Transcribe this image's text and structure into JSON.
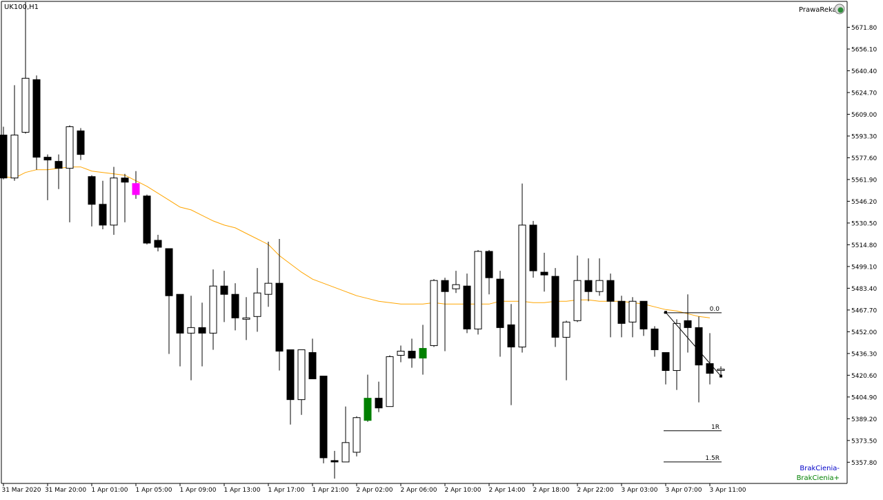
{
  "window": {
    "symbol_label": "UK100,H1",
    "brand_label": "PrawaReka"
  },
  "chart_data": {
    "type": "candlestick",
    "symbol": "UK100",
    "timeframe": "H1",
    "ylim": [
      5343.0,
      5690.0
    ],
    "y_ticks": [
      5357.8,
      5373.5,
      5389.2,
      5404.9,
      5420.6,
      5436.3,
      5452.0,
      5467.7,
      5483.4,
      5499.1,
      5514.8,
      5530.5,
      5546.2,
      5561.9,
      5577.6,
      5593.3,
      5609.0,
      5624.7,
      5640.4,
      5656.1,
      5671.8
    ],
    "y_tick_labels": [
      "5357.80",
      "5373.50",
      "5389.20",
      "5404.90",
      "5420.60",
      "5436.30",
      "5452.00",
      "5467.70",
      "5483.40",
      "5499.10",
      "5514.80",
      "5530.50",
      "5546.20",
      "5561.90",
      "5577.60",
      "5593.30",
      "5609.00",
      "5624.70",
      "5640.40",
      "5656.10",
      "5671.80"
    ],
    "x_tick_labels": [
      {
        "bar": 0,
        "label": "31 Mar 2020"
      },
      {
        "bar": 4,
        "label": "31 Mar 20:00"
      },
      {
        "bar": 8,
        "label": "1 Apr 01:00"
      },
      {
        "bar": 12,
        "label": "1 Apr 05:00"
      },
      {
        "bar": 16,
        "label": "1 Apr 09:00"
      },
      {
        "bar": 20,
        "label": "1 Apr 13:00"
      },
      {
        "bar": 24,
        "label": "1 Apr 17:00"
      },
      {
        "bar": 28,
        "label": "1 Apr 21:00"
      },
      {
        "bar": 32,
        "label": "2 Apr 02:00"
      },
      {
        "bar": 36,
        "label": "2 Apr 06:00"
      },
      {
        "bar": 40,
        "label": "2 Apr 10:00"
      },
      {
        "bar": 44,
        "label": "2 Apr 14:00"
      },
      {
        "bar": 48,
        "label": "2 Apr 18:00"
      },
      {
        "bar": 52,
        "label": "2 Apr 22:00"
      },
      {
        "bar": 56,
        "label": "3 Apr 03:00"
      },
      {
        "bar": 60,
        "label": "3 Apr 07:00"
      },
      {
        "bar": 64,
        "label": "3 Apr 11:00"
      }
    ],
    "candles": [
      {
        "o": 5594,
        "h": 5600,
        "l": 5562,
        "c": 5563
      },
      {
        "o": 5563,
        "h": 5630,
        "l": 5561,
        "c": 5594
      },
      {
        "o": 5596,
        "h": 5690,
        "l": 5595,
        "c": 5635
      },
      {
        "o": 5634,
        "h": 5637,
        "l": 5569,
        "c": 5578
      },
      {
        "o": 5578,
        "h": 5580,
        "l": 5547,
        "c": 5576
      },
      {
        "o": 5575,
        "h": 5580,
        "l": 5555,
        "c": 5570
      },
      {
        "o": 5570,
        "h": 5601,
        "l": 5531,
        "c": 5600
      },
      {
        "o": 5597,
        "h": 5599,
        "l": 5576,
        "c": 5580
      },
      {
        "o": 5564,
        "h": 5565,
        "l": 5528,
        "c": 5544
      },
      {
        "o": 5544,
        "h": 5561,
        "l": 5526,
        "c": 5529
      },
      {
        "o": 5529,
        "h": 5571,
        "l": 5522,
        "c": 5563
      },
      {
        "o": 5563,
        "h": 5566,
        "l": 5531,
        "c": 5560
      },
      {
        "o": 5559,
        "h": 5568,
        "l": 5548,
        "c": 5551
      },
      {
        "o": 5550,
        "h": 5551,
        "l": 5515,
        "c": 5516
      },
      {
        "o": 5518,
        "h": 5522,
        "l": 5510,
        "c": 5513
      },
      {
        "o": 5512,
        "h": 5512,
        "l": 5436,
        "c": 5478
      },
      {
        "o": 5479,
        "h": 5479,
        "l": 5427,
        "c": 5451
      },
      {
        "o": 5451,
        "h": 5478,
        "l": 5417,
        "c": 5455
      },
      {
        "o": 5455,
        "h": 5473,
        "l": 5427,
        "c": 5451
      },
      {
        "o": 5451,
        "h": 5497,
        "l": 5439,
        "c": 5485
      },
      {
        "o": 5485,
        "h": 5496,
        "l": 5459,
        "c": 5479
      },
      {
        "o": 5479,
        "h": 5487,
        "l": 5453,
        "c": 5462
      },
      {
        "o": 5461,
        "h": 5477,
        "l": 5446,
        "c": 5462
      },
      {
        "o": 5463,
        "h": 5498,
        "l": 5452,
        "c": 5480
      },
      {
        "o": 5479,
        "h": 5517,
        "l": 5470,
        "c": 5487
      },
      {
        "o": 5487,
        "h": 5519,
        "l": 5424,
        "c": 5438
      },
      {
        "o": 5439,
        "h": 5439,
        "l": 5385,
        "c": 5403
      },
      {
        "o": 5403,
        "h": 5439,
        "l": 5392,
        "c": 5439
      },
      {
        "o": 5437,
        "h": 5447,
        "l": 5419,
        "c": 5418
      },
      {
        "o": 5420,
        "h": 5420,
        "l": 5357,
        "c": 5361
      },
      {
        "o": 5359,
        "h": 5366,
        "l": 5346,
        "c": 5358
      },
      {
        "o": 5358,
        "h": 5398,
        "l": 5358,
        "c": 5372
      },
      {
        "o": 5365,
        "h": 5391,
        "l": 5362,
        "c": 5390
      },
      {
        "o": 5388,
        "h": 5421,
        "l": 5387,
        "c": 5404
      },
      {
        "o": 5404,
        "h": 5416,
        "l": 5394,
        "c": 5397
      },
      {
        "o": 5398,
        "h": 5435,
        "l": 5398,
        "c": 5434
      },
      {
        "o": 5435,
        "h": 5442,
        "l": 5430,
        "c": 5438
      },
      {
        "o": 5438,
        "h": 5447,
        "l": 5426,
        "c": 5433
      },
      {
        "o": 5433,
        "h": 5457,
        "l": 5421,
        "c": 5440
      },
      {
        "o": 5442,
        "h": 5490,
        "l": 5441,
        "c": 5489
      },
      {
        "o": 5489,
        "h": 5491,
        "l": 5438,
        "c": 5481
      },
      {
        "o": 5483,
        "h": 5496,
        "l": 5480,
        "c": 5486
      },
      {
        "o": 5485,
        "h": 5494,
        "l": 5451,
        "c": 5454
      },
      {
        "o": 5454,
        "h": 5511,
        "l": 5450,
        "c": 5510
      },
      {
        "o": 5510,
        "h": 5511,
        "l": 5479,
        "c": 5491
      },
      {
        "o": 5490,
        "h": 5496,
        "l": 5434,
        "c": 5455
      },
      {
        "o": 5457,
        "h": 5472,
        "l": 5399,
        "c": 5441
      },
      {
        "o": 5441,
        "h": 5559,
        "l": 5437,
        "c": 5529
      },
      {
        "o": 5529,
        "h": 5532,
        "l": 5491,
        "c": 5496
      },
      {
        "o": 5495,
        "h": 5509,
        "l": 5481,
        "c": 5493
      },
      {
        "o": 5492,
        "h": 5498,
        "l": 5441,
        "c": 5448
      },
      {
        "o": 5448,
        "h": 5460,
        "l": 5417,
        "c": 5459
      },
      {
        "o": 5460,
        "h": 5507,
        "l": 5459,
        "c": 5489
      },
      {
        "o": 5489,
        "h": 5505,
        "l": 5474,
        "c": 5481
      },
      {
        "o": 5481,
        "h": 5505,
        "l": 5478,
        "c": 5489
      },
      {
        "o": 5489,
        "h": 5494,
        "l": 5448,
        "c": 5474
      },
      {
        "o": 5474,
        "h": 5478,
        "l": 5448,
        "c": 5458
      },
      {
        "o": 5459,
        "h": 5477,
        "l": 5448,
        "c": 5474
      },
      {
        "o": 5474,
        "h": 5474,
        "l": 5449,
        "c": 5454
      },
      {
        "o": 5454,
        "h": 5456,
        "l": 5434,
        "c": 5439
      },
      {
        "o": 5437,
        "h": 5437,
        "l": 5414,
        "c": 5424
      },
      {
        "o": 5424,
        "h": 5461,
        "l": 5410,
        "c": 5458
      },
      {
        "o": 5460,
        "h": 5479,
        "l": 5437,
        "c": 5455
      },
      {
        "o": 5455,
        "h": 5463,
        "l": 5401,
        "c": 5428
      },
      {
        "o": 5429,
        "h": 5451,
        "l": 5414,
        "c": 5422
      },
      {
        "o": 5424,
        "h": 5427,
        "l": 5420,
        "c": 5425
      }
    ],
    "highlighted_candles": [
      {
        "bar": 12,
        "color": "#ff00ff"
      },
      {
        "bar": 33,
        "color": "#008000"
      },
      {
        "bar": 38,
        "color": "#008000"
      }
    ],
    "moving_average": {
      "color": "#ffa500",
      "points": [
        [
          0,
          5564
        ],
        [
          1,
          5563
        ],
        [
          2,
          5567
        ],
        [
          3,
          5569
        ],
        [
          4,
          5569
        ],
        [
          5,
          5570
        ],
        [
          6,
          5571
        ],
        [
          7,
          5571
        ],
        [
          8,
          5568
        ],
        [
          9,
          5567
        ],
        [
          10,
          5566
        ],
        [
          11,
          5565
        ],
        [
          12,
          5561
        ],
        [
          13,
          5557
        ],
        [
          14,
          5552
        ],
        [
          15,
          5547
        ],
        [
          16,
          5542
        ],
        [
          17,
          5540
        ],
        [
          18,
          5536
        ],
        [
          19,
          5532
        ],
        [
          20,
          5529
        ],
        [
          21,
          5527
        ],
        [
          22,
          5523
        ],
        [
          23,
          5519
        ],
        [
          24,
          5515
        ],
        [
          25,
          5507
        ],
        [
          26,
          5501
        ],
        [
          27,
          5495
        ],
        [
          28,
          5490
        ],
        [
          29,
          5487
        ],
        [
          30,
          5484
        ],
        [
          31,
          5481
        ],
        [
          32,
          5478
        ],
        [
          33,
          5476
        ],
        [
          34,
          5474
        ],
        [
          35,
          5473
        ],
        [
          36,
          5472
        ],
        [
          37,
          5472
        ],
        [
          38,
          5472
        ],
        [
          39,
          5473
        ],
        [
          40,
          5472
        ],
        [
          41,
          5472
        ],
        [
          42,
          5472
        ],
        [
          43,
          5472
        ],
        [
          44,
          5472
        ],
        [
          45,
          5474
        ],
        [
          46,
          5474
        ],
        [
          47,
          5474
        ],
        [
          48,
          5473
        ],
        [
          49,
          5473
        ],
        [
          50,
          5474
        ],
        [
          51,
          5474
        ],
        [
          52,
          5475
        ],
        [
          53,
          5475
        ],
        [
          54,
          5474
        ],
        [
          55,
          5474
        ],
        [
          56,
          5474
        ],
        [
          57,
          5473
        ],
        [
          58,
          5472
        ],
        [
          59,
          5470
        ],
        [
          60,
          5468
        ],
        [
          61,
          5467
        ],
        [
          62,
          5465
        ],
        [
          63,
          5463
        ],
        [
          64,
          5462
        ]
      ]
    },
    "fib_levels": [
      {
        "label": "0.0",
        "value": 5465.7
      },
      {
        "label": "1R",
        "value": 5380.5
      },
      {
        "label": "1.5R",
        "value": 5358.0
      }
    ],
    "trendline": {
      "from": [
        60,
        5466
      ],
      "to": [
        65,
        5420
      ]
    },
    "indicator_labels": [
      {
        "text": "BrakCienia-",
        "color": "#0000c8"
      },
      {
        "text": "BrakCienia+",
        "color": "#008000"
      }
    ],
    "colors": {
      "bull_fill": "#ffffff",
      "bear_fill": "#000000",
      "candle_outline": "#000000",
      "grid": "none",
      "background": "#ffffff"
    }
  }
}
